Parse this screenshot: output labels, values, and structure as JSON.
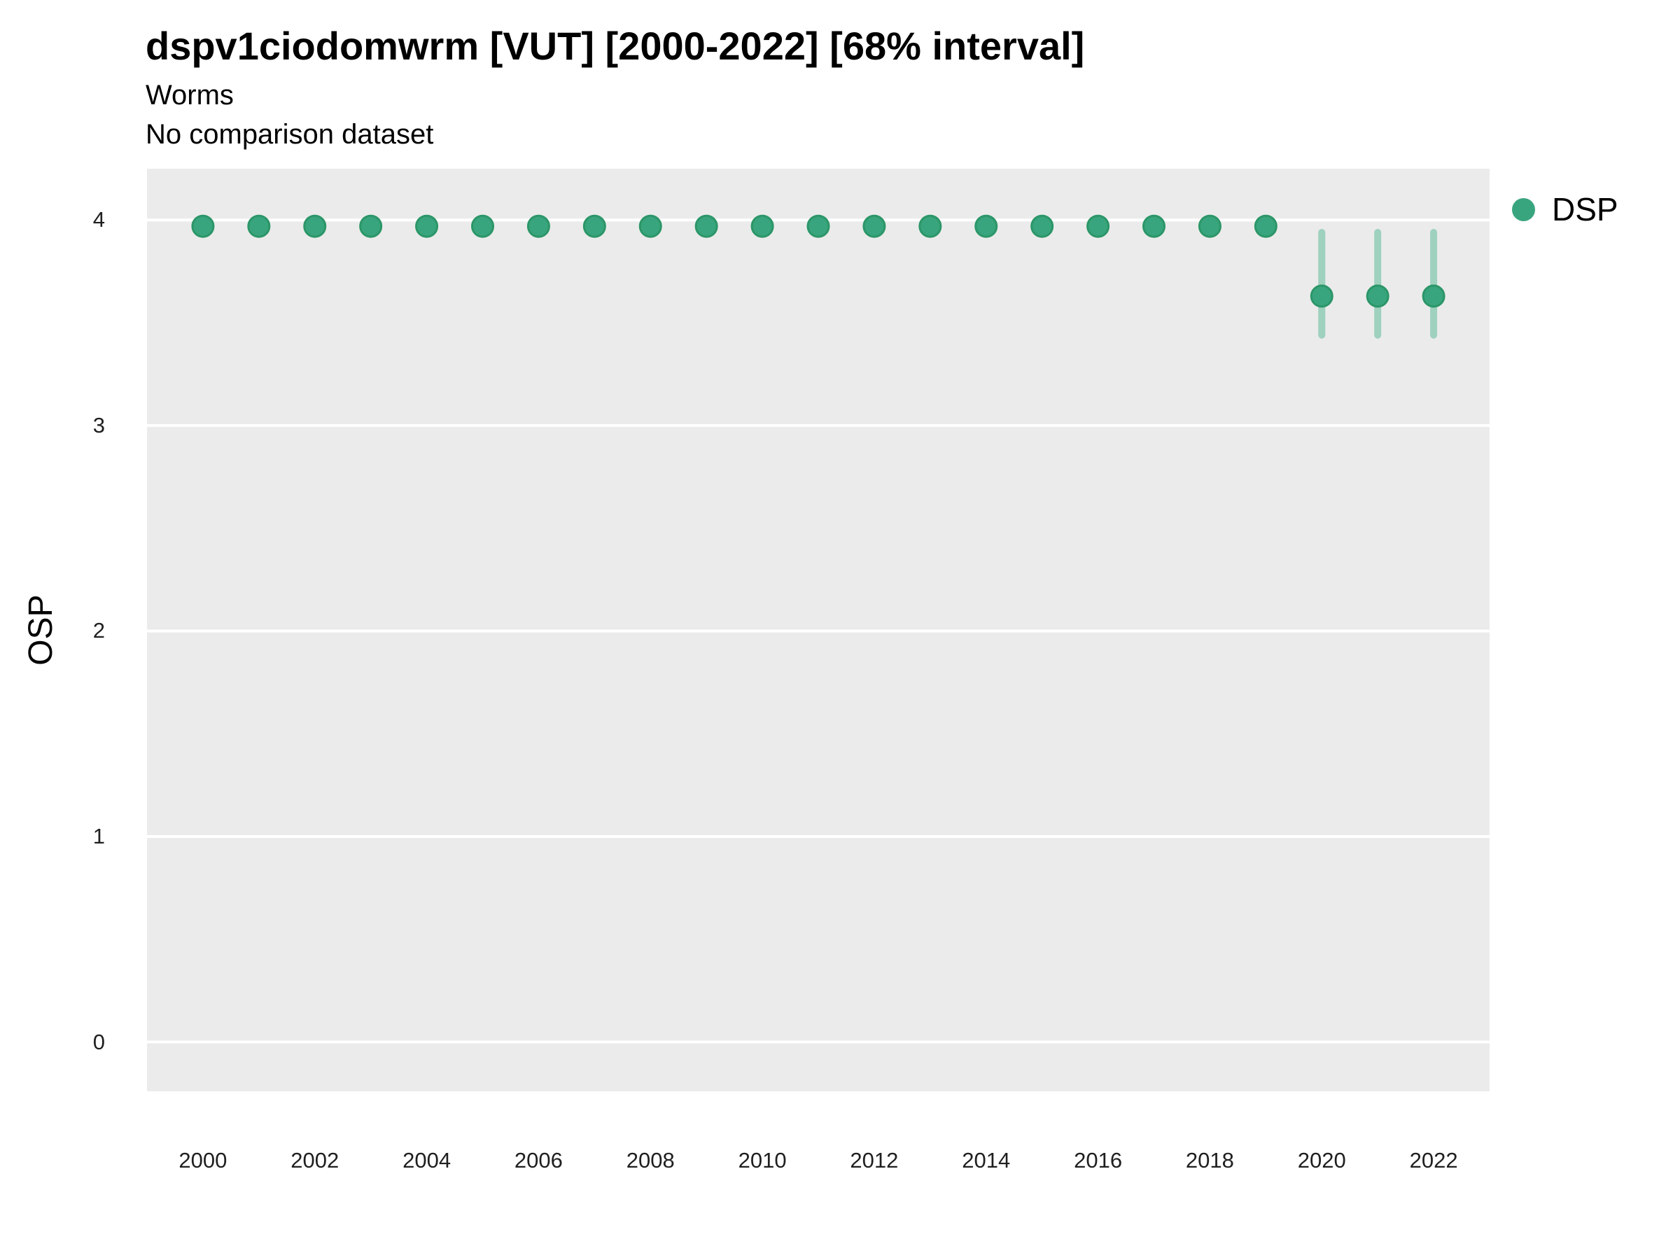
{
  "header": {
    "title": "dspv1ciodomwrm [VUT] [2000-2022] [68% interval]",
    "subtitle": "Worms",
    "comparison_note": "No comparison dataset"
  },
  "legend": {
    "position": "right-top",
    "items": [
      {
        "label": "DSP",
        "color": "#39A57E"
      }
    ]
  },
  "colors": {
    "panel_background": "#EBEBEB",
    "gridline": "#FFFFFF",
    "point_fill": "#39A57E",
    "point_border": "#2C9668",
    "interval_line": "#9ED1BE",
    "title_text": "#000000",
    "tick_text": "#1F1F1F"
  },
  "chart_data": {
    "type": "scatter",
    "title": "dspv1ciodomwrm [VUT] [2000-2022] [68% interval]",
    "subtitle": "Worms",
    "note": "No comparison dataset",
    "interval_label": "68% interval",
    "xlabel": "",
    "ylabel": "OSP",
    "xlim": [
      1999,
      2023
    ],
    "ylim": [
      -0.24,
      4.25
    ],
    "x_ticks": [
      2000,
      2002,
      2004,
      2006,
      2008,
      2010,
      2012,
      2014,
      2016,
      2018,
      2020,
      2022
    ],
    "y_ticks": [
      0,
      1,
      2,
      3,
      4
    ],
    "grid": "horizontal-major-only",
    "legend_position": "right-top",
    "series": [
      {
        "name": "DSP",
        "color": "#39A57E",
        "interval_color": "#9ED1BE",
        "points": [
          {
            "x": 2000,
            "y": 3.97,
            "lo": null,
            "hi": null
          },
          {
            "x": 2001,
            "y": 3.97,
            "lo": null,
            "hi": null
          },
          {
            "x": 2002,
            "y": 3.97,
            "lo": null,
            "hi": null
          },
          {
            "x": 2003,
            "y": 3.97,
            "lo": null,
            "hi": null
          },
          {
            "x": 2004,
            "y": 3.97,
            "lo": null,
            "hi": null
          },
          {
            "x": 2005,
            "y": 3.97,
            "lo": null,
            "hi": null
          },
          {
            "x": 2006,
            "y": 3.97,
            "lo": null,
            "hi": null
          },
          {
            "x": 2007,
            "y": 3.97,
            "lo": null,
            "hi": null
          },
          {
            "x": 2008,
            "y": 3.97,
            "lo": null,
            "hi": null
          },
          {
            "x": 2009,
            "y": 3.97,
            "lo": null,
            "hi": null
          },
          {
            "x": 2010,
            "y": 3.97,
            "lo": null,
            "hi": null
          },
          {
            "x": 2011,
            "y": 3.97,
            "lo": null,
            "hi": null
          },
          {
            "x": 2012,
            "y": 3.97,
            "lo": null,
            "hi": null
          },
          {
            "x": 2013,
            "y": 3.97,
            "lo": null,
            "hi": null
          },
          {
            "x": 2014,
            "y": 3.97,
            "lo": null,
            "hi": null
          },
          {
            "x": 2015,
            "y": 3.97,
            "lo": null,
            "hi": null
          },
          {
            "x": 2016,
            "y": 3.97,
            "lo": null,
            "hi": null
          },
          {
            "x": 2017,
            "y": 3.97,
            "lo": null,
            "hi": null
          },
          {
            "x": 2018,
            "y": 3.97,
            "lo": null,
            "hi": null
          },
          {
            "x": 2019,
            "y": 3.97,
            "lo": null,
            "hi": null
          },
          {
            "x": 2020,
            "y": 3.63,
            "lo": 3.44,
            "hi": 3.94
          },
          {
            "x": 2021,
            "y": 3.63,
            "lo": 3.44,
            "hi": 3.94
          },
          {
            "x": 2022,
            "y": 3.63,
            "lo": 3.44,
            "hi": 3.94
          }
        ]
      }
    ]
  }
}
